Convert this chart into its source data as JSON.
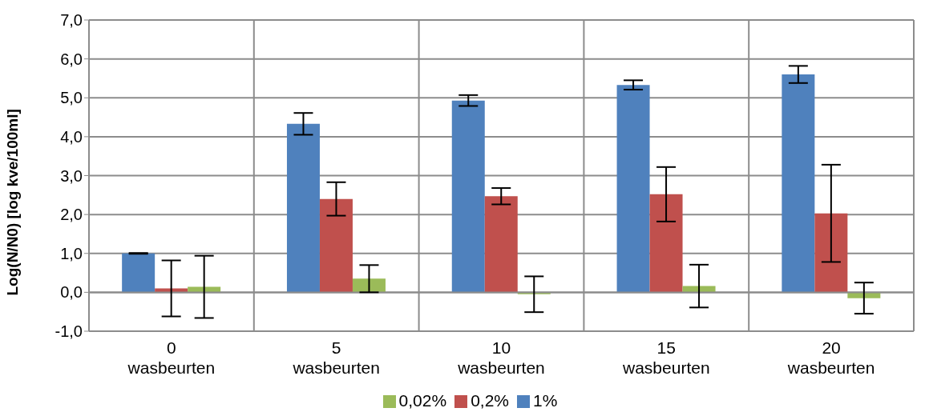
{
  "chart_data": {
    "type": "bar",
    "ylabel": "Log(N/N0) [log kve/100ml]",
    "categories": [
      "0\nwasbeurten",
      "5\nwasbeurten",
      "10\nwasbeurten",
      "15\nwasbeurten",
      "20\nwasbeurten"
    ],
    "series": [
      {
        "name": "1%",
        "color": "#4f81bd",
        "values": [
          1.0,
          4.33,
          4.93,
          5.33,
          5.6
        ],
        "errors": [
          0.01,
          0.28,
          0.14,
          0.12,
          0.22
        ]
      },
      {
        "name": "0,2%",
        "color": "#c0504d",
        "values": [
          0.1,
          2.4,
          2.47,
          2.52,
          2.03
        ],
        "errors": [
          0.72,
          0.43,
          0.21,
          0.7,
          1.25
        ]
      },
      {
        "name": "0,02%",
        "color": "#9bbb59",
        "values": [
          0.14,
          0.35,
          -0.05,
          0.16,
          -0.15
        ],
        "errors": [
          0.8,
          0.35,
          0.46,
          0.55,
          0.4
        ]
      }
    ],
    "ylim": [
      -1,
      7
    ],
    "yticks": [
      {
        "value": -1,
        "label": "-1,0"
      },
      {
        "value": 0,
        "label": "0,0"
      },
      {
        "value": 1,
        "label": "1,0"
      },
      {
        "value": 2,
        "label": "2,0"
      },
      {
        "value": 3,
        "label": "3,0"
      },
      {
        "value": 4,
        "label": "4,0"
      },
      {
        "value": 5,
        "label": "5,0"
      },
      {
        "value": 6,
        "label": "6,0"
      },
      {
        "value": 7,
        "label": "7,0"
      }
    ],
    "grid": true,
    "legend": "bottom"
  }
}
